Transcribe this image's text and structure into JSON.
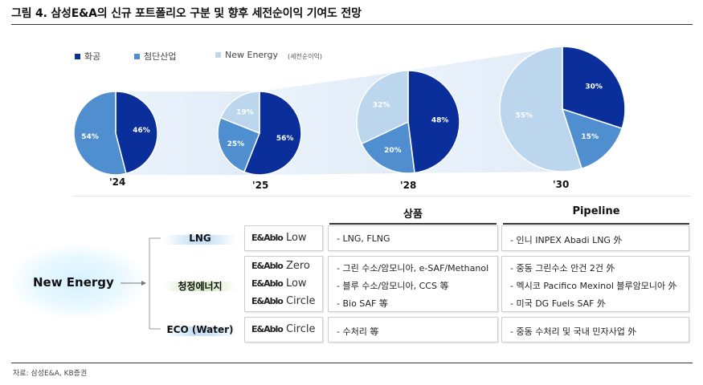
{
  "title": "그림 4. 삼성E&A의 신규 포트폴리오 구분 및 향후 세전순이익 기여도 전망",
  "legend": [
    {
      "label": "화공",
      "color": "#0a2f9a"
    },
    {
      "label": "첨단산업",
      "color": "#4f8fd0"
    },
    {
      "label": "New Energy",
      "color": "#bcd6ee"
    }
  ],
  "unit_note": "(세전순이익)",
  "chart_data": {
    "type": "pie",
    "series_names": [
      "화공",
      "첨단산업",
      "New Energy"
    ],
    "colors": [
      "#0a2f9a",
      "#4f8fd0",
      "#bcd6ee"
    ],
    "pies": [
      {
        "label": "'24",
        "values": [
          46,
          54,
          0
        ]
      },
      {
        "label": "'25",
        "values": [
          56,
          25,
          19
        ]
      },
      {
        "label": "'28",
        "values": [
          48,
          20,
          32
        ]
      },
      {
        "label": "'30",
        "values": [
          30,
          15,
          55
        ]
      }
    ]
  },
  "table": {
    "root": "New Energy",
    "col_product": "상품",
    "col_pipeline": "Pipeline",
    "rows": [
      {
        "category": "LNG",
        "products": [
          {
            "logo": "E&Ablo",
            "name": "Low"
          }
        ],
        "items": [
          "- LNG, FLNG"
        ],
        "pipeline": [
          "- 인니 INPEX Abadi LNG 外"
        ]
      },
      {
        "category": "청정에너지",
        "products": [
          {
            "logo": "E&Ablo",
            "name": "Zero"
          },
          {
            "logo": "E&Ablo",
            "name": "Low"
          },
          {
            "logo": "E&Ablo",
            "name": "Circle"
          }
        ],
        "items": [
          "- 그린 수소/암모니아, e-SAF/Methanol",
          "- 블루 수소/암모니아, CCS 等",
          "- Bio SAF 等"
        ],
        "pipeline": [
          "- 중동 그린수소 안건 2건 外",
          "- 멕시코 Pacifico Mexinol 블루암모니아 外",
          "- 미국 DG Fuels SAF  外"
        ]
      },
      {
        "category": "ECO (Water)",
        "products": [
          {
            "logo": "E&Ablo",
            "name": "Circle"
          }
        ],
        "items": [
          "- 수처리 等"
        ],
        "pipeline": [
          "- 중동 수처리 및 국내 민자사업 外"
        ]
      }
    ]
  },
  "source": "자료: 삼성E&A, KB증권"
}
